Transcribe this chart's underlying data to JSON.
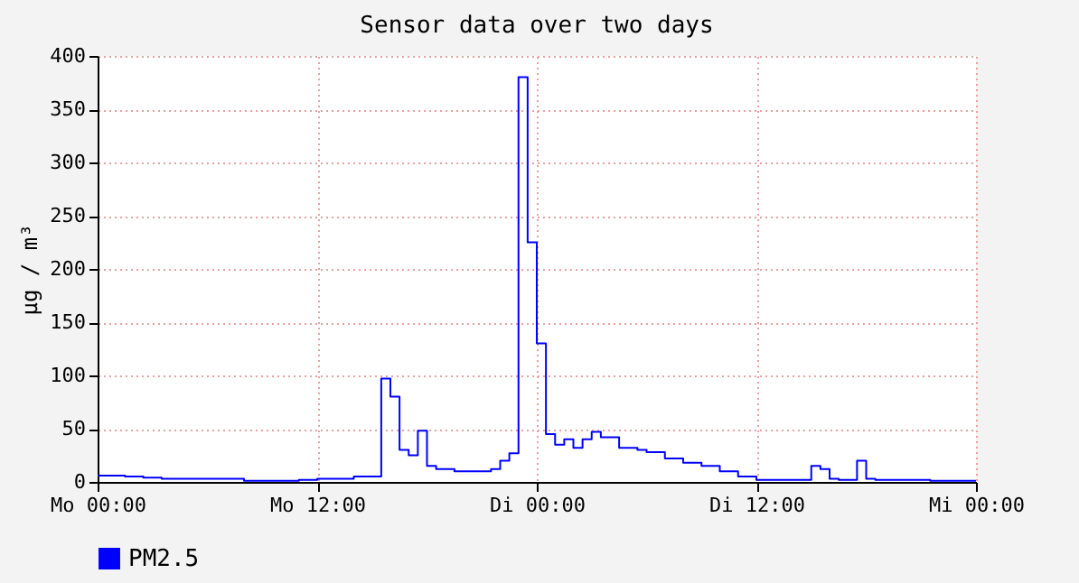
{
  "chart_data": {
    "type": "step",
    "title": "Sensor data over two days",
    "ylabel": "µg / m³",
    "categories": [
      "Mo 00:00",
      null,
      null,
      null,
      null,
      null,
      null,
      null,
      null,
      null,
      null,
      null,
      null,
      null,
      null,
      null,
      null,
      null,
      null,
      null,
      null,
      null,
      null,
      null,
      "Mo 12:00",
      null,
      null,
      null,
      null,
      null,
      null,
      null,
      null,
      null,
      null,
      null,
      null,
      null,
      null,
      null,
      null,
      null,
      null,
      null,
      null,
      null,
      null,
      null,
      "Di 00:00",
      null,
      null,
      null,
      null,
      null,
      null,
      null,
      null,
      null,
      null,
      null,
      null,
      null,
      null,
      null,
      null,
      null,
      null,
      null,
      null,
      null,
      null,
      null,
      "Di 12:00",
      null,
      null,
      null,
      null,
      null,
      null,
      null,
      null,
      null,
      null,
      null,
      null,
      null,
      null,
      null,
      null,
      null,
      null,
      null,
      null,
      null,
      null,
      null,
      "Mi 00:00"
    ],
    "ylim": [
      0,
      400
    ],
    "yticks": [
      0,
      50,
      100,
      150,
      200,
      250,
      300,
      350,
      400
    ],
    "grid": true,
    "legend": "bottom left",
    "line_style": "solid",
    "series": [
      {
        "name": "PM2.5",
        "color": "#0000ff",
        "values": [
          6,
          6,
          6,
          5,
          5,
          4,
          4,
          3,
          3,
          3,
          3,
          3,
          3,
          3,
          3,
          3,
          1,
          1,
          1,
          1,
          1,
          1,
          2,
          2,
          3,
          3,
          3,
          3,
          5,
          5,
          5,
          97,
          80,
          30,
          25,
          48,
          15,
          12,
          12,
          10,
          10,
          10,
          10,
          12,
          20,
          27,
          380,
          225,
          130,
          45,
          35,
          40,
          32,
          40,
          47,
          42,
          42,
          32,
          32,
          30,
          28,
          28,
          22,
          22,
          18,
          18,
          15,
          15,
          10,
          10,
          5,
          5,
          2,
          2,
          2,
          2,
          2,
          2,
          15,
          12,
          3,
          2,
          2,
          20,
          3,
          2,
          2,
          2,
          2,
          2,
          2,
          1,
          1,
          1,
          1,
          1,
          1
        ]
      }
    ]
  }
}
